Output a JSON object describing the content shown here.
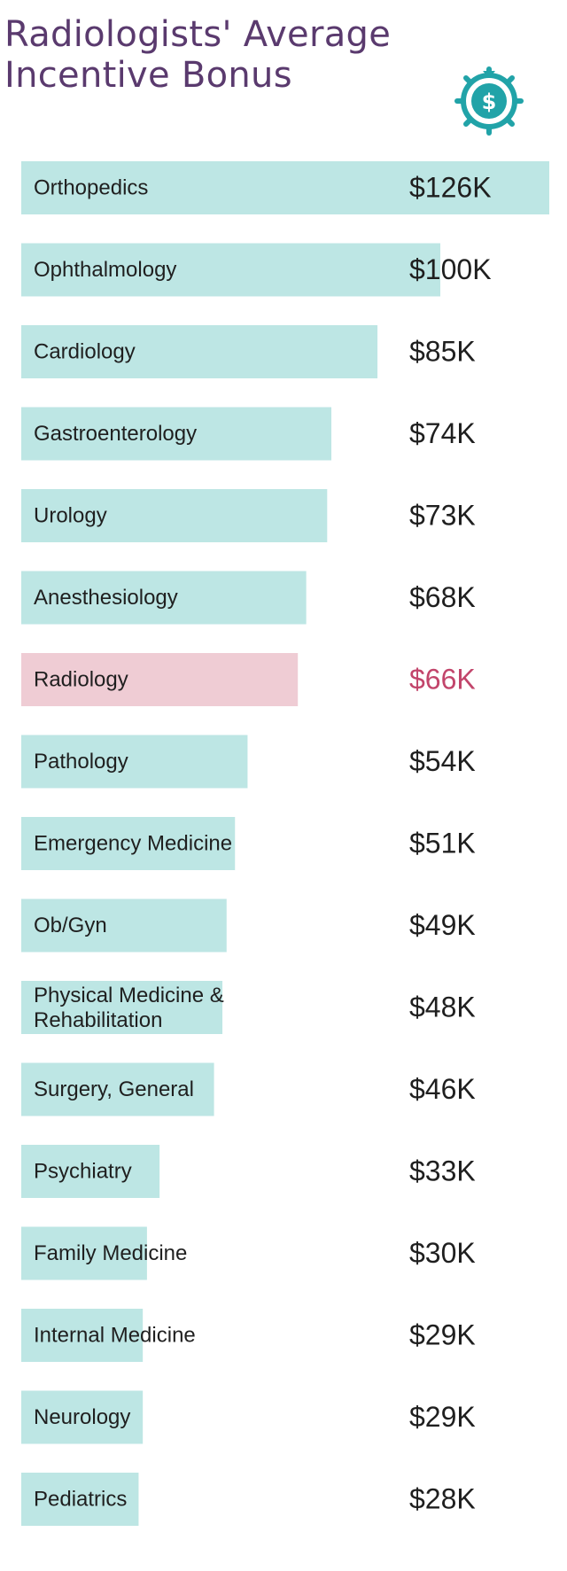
{
  "title": "Radiologists' Average Incentive Bonus",
  "icon": "money-bag-target-icon",
  "colors": {
    "bar": "#bde6e4",
    "highlight_bar": "#efccd4",
    "highlight_text": "#c2456b",
    "text": "#1f1f1f",
    "title": "#5a3a6e",
    "icon": "#21a3a8"
  },
  "chart_data": {
    "type": "bar",
    "orientation": "horizontal",
    "unit": "$K",
    "highlight": "Radiology",
    "categories": [
      "Orthopedics",
      "Ophthalmology",
      "Cardiology",
      "Gastroenterology",
      "Urology",
      "Anesthesiology",
      "Radiology",
      "Pathology",
      "Emergency Medicine",
      "Ob/Gyn",
      "Physical Medicine & Rehabilitation",
      "Surgery, General",
      "Psychiatry",
      "Family Medicine",
      "Internal Medicine",
      "Neurology",
      "Pediatrics"
    ],
    "values": [
      126,
      100,
      85,
      74,
      73,
      68,
      66,
      54,
      51,
      49,
      48,
      46,
      33,
      30,
      29,
      29,
      28
    ],
    "value_labels": [
      "$126K",
      "$100K",
      "$85K",
      "$74K",
      "$73K",
      "$68K",
      "$66K",
      "$54K",
      "$51K",
      "$49K",
      "$48K",
      "$46K",
      "$33K",
      "$30K",
      "$29K",
      "$29K",
      "$28K"
    ]
  }
}
